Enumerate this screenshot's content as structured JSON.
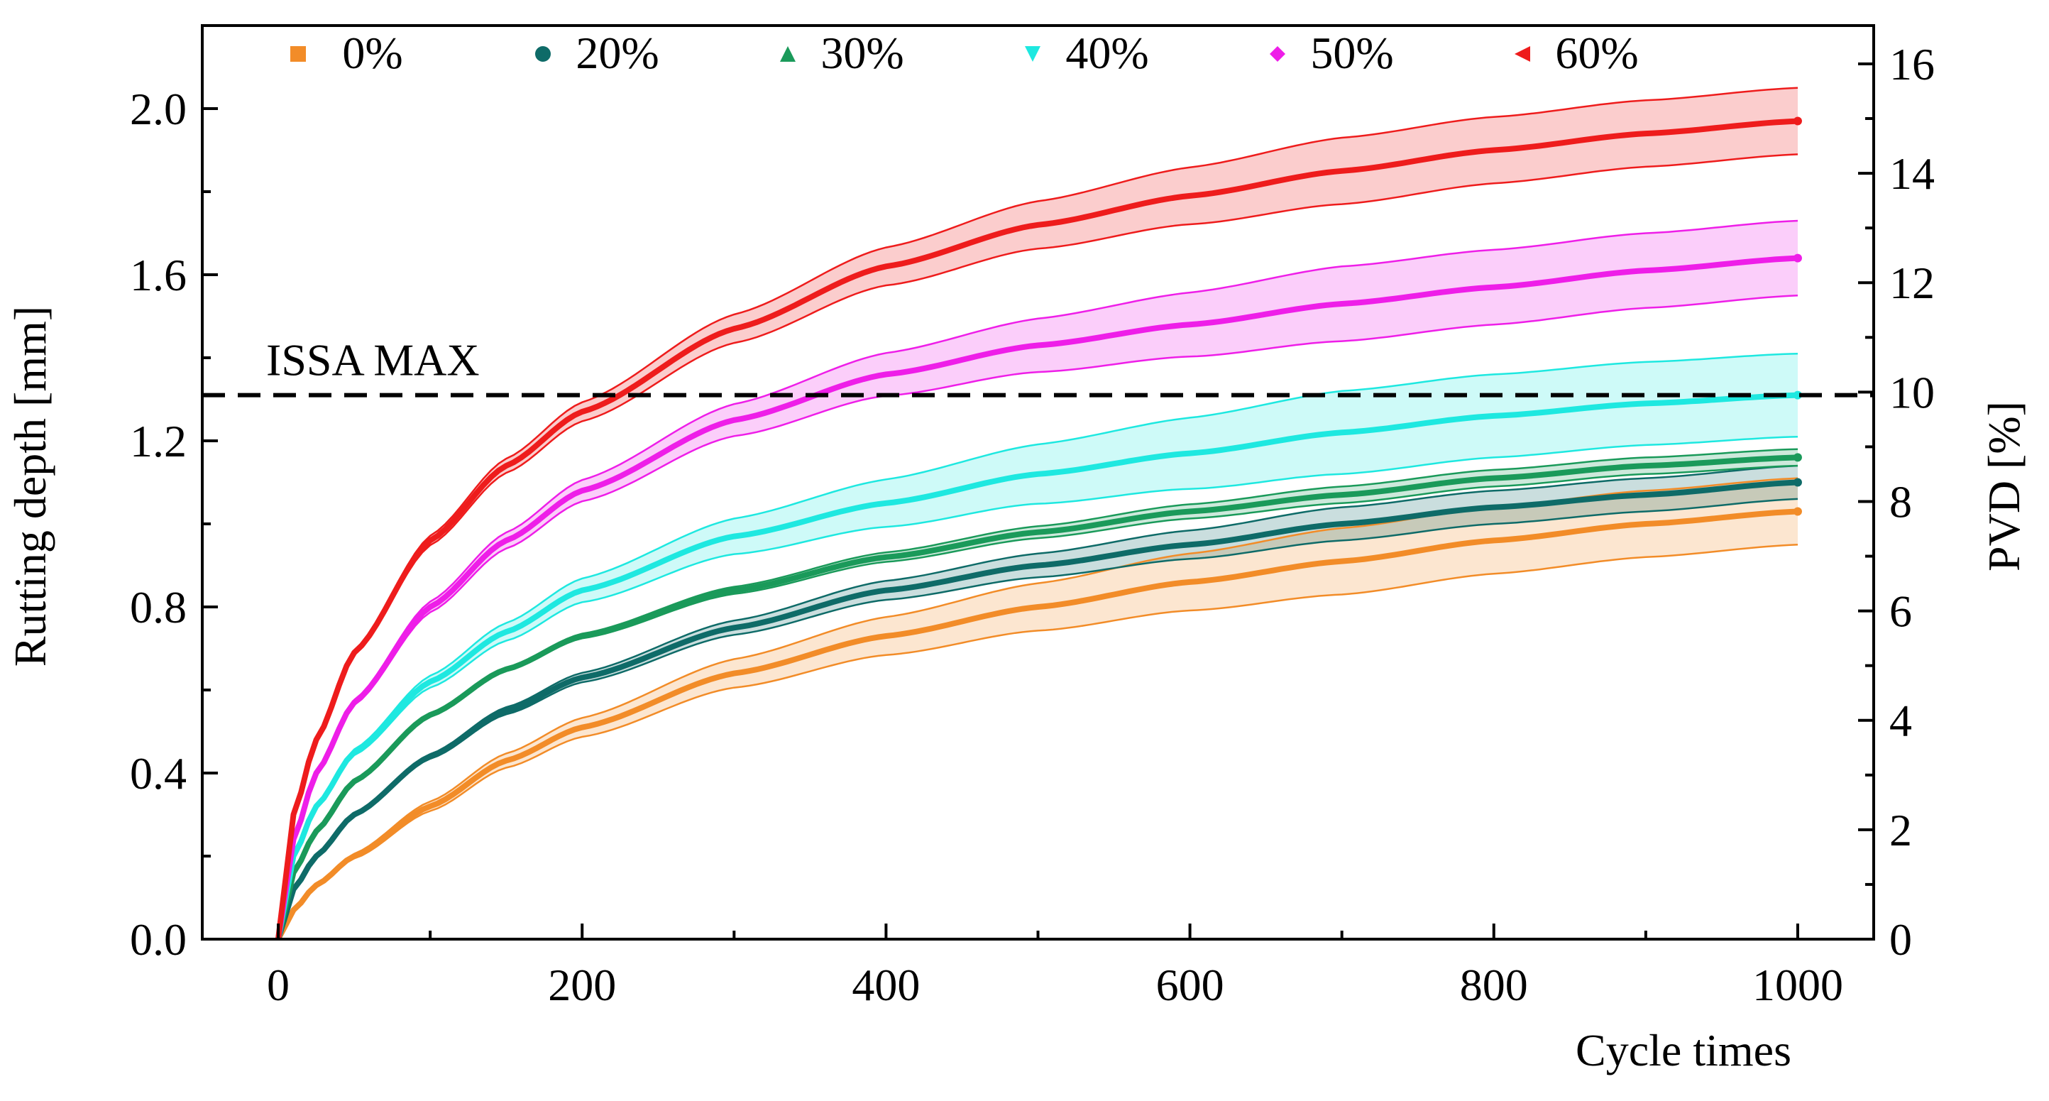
{
  "chart_data": {
    "type": "line",
    "title": "",
    "xlabel": "Cycle times",
    "ylabel": "Rutting depth [mm]",
    "y2label": "PVD [%]",
    "xlim": [
      -50,
      1050
    ],
    "ylim": [
      0,
      2.2
    ],
    "y2lim": [
      0,
      16.7
    ],
    "xticks": [
      0,
      200,
      400,
      600,
      800,
      1000
    ],
    "yticks": [
      0.0,
      0.4,
      0.8,
      1.2,
      1.6,
      2.0
    ],
    "ytick_labels": [
      "0.0",
      "0.4",
      "0.8",
      "1.2",
      "1.6",
      "2.0"
    ],
    "y2ticks": [
      0,
      2,
      4,
      6,
      8,
      10,
      12,
      14,
      16
    ],
    "y2tick_labels": [
      "0",
      "2",
      "4",
      "6",
      "8",
      "10",
      "12",
      "14",
      "16"
    ],
    "xtick_labels": [
      "0",
      "200",
      "400",
      "600",
      "800",
      "1000"
    ],
    "legend_position": "top",
    "reference_line": {
      "label": "ISSA MAX",
      "y": 1.31,
      "style": "dashed"
    },
    "x": [
      0,
      10,
      25,
      50,
      100,
      150,
      200,
      300,
      400,
      500,
      600,
      700,
      800,
      900,
      1000
    ],
    "series": [
      {
        "name": "0%",
        "color": "#f28c28",
        "marker": "square",
        "values": [
          0,
          0.07,
          0.13,
          0.2,
          0.32,
          0.43,
          0.51,
          0.64,
          0.73,
          0.8,
          0.86,
          0.91,
          0.96,
          1.0,
          1.03
        ],
        "band": 0.08
      },
      {
        "name": "20%",
        "color": "#0e6b68",
        "marker": "circle",
        "values": [
          0,
          0.12,
          0.2,
          0.3,
          0.44,
          0.55,
          0.63,
          0.75,
          0.84,
          0.9,
          0.95,
          1.0,
          1.04,
          1.07,
          1.1
        ],
        "band": 0.04
      },
      {
        "name": "30%",
        "color": "#1a9a5a",
        "marker": "triangle-up",
        "values": [
          0,
          0.16,
          0.26,
          0.38,
          0.54,
          0.65,
          0.73,
          0.84,
          0.92,
          0.98,
          1.03,
          1.07,
          1.11,
          1.14,
          1.16
        ],
        "band": 0.02
      },
      {
        "name": "40%",
        "color": "#1ee8e0",
        "marker": "triangle-down",
        "values": [
          0,
          0.2,
          0.32,
          0.45,
          0.62,
          0.74,
          0.84,
          0.97,
          1.05,
          1.12,
          1.17,
          1.22,
          1.26,
          1.29,
          1.31
        ],
        "band": 0.1
      },
      {
        "name": "50%",
        "color": "#ee1ee8",
        "marker": "diamond",
        "values": [
          0,
          0.24,
          0.4,
          0.57,
          0.8,
          0.96,
          1.08,
          1.25,
          1.36,
          1.43,
          1.48,
          1.53,
          1.57,
          1.61,
          1.64
        ],
        "band": 0.09
      },
      {
        "name": "60%",
        "color": "#ee1c1c",
        "marker": "triangle-left",
        "values": [
          0,
          0.3,
          0.48,
          0.69,
          0.96,
          1.14,
          1.27,
          1.47,
          1.62,
          1.72,
          1.79,
          1.85,
          1.9,
          1.94,
          1.97
        ],
        "band": 0.08
      }
    ]
  }
}
